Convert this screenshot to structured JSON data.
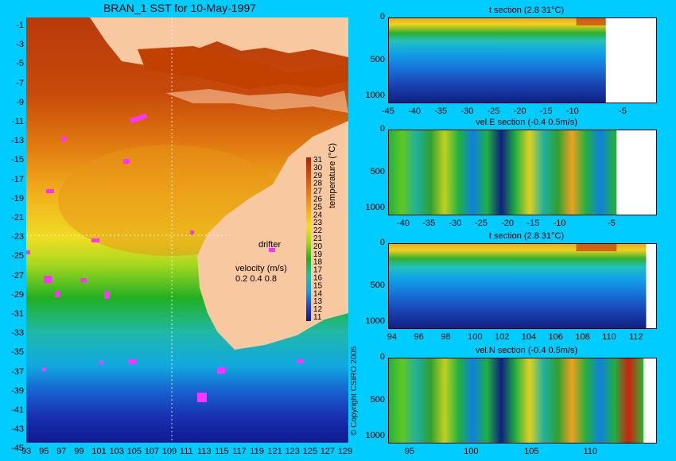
{
  "map": {
    "title": "BRAN_1 SST for 10-May-1997",
    "lat_ticks": [
      "-1",
      "-3",
      "-5",
      "-7",
      "-9",
      "-11",
      "-13",
      "-15",
      "-17",
      "-19",
      "-21",
      "-23",
      "-25",
      "-27",
      "-29",
      "-31",
      "-33",
      "-35",
      "-37",
      "-39",
      "-41",
      "-43",
      "-45"
    ],
    "lon_ticks": [
      "93",
      "95",
      "97",
      "99",
      "101",
      "103",
      "105",
      "107",
      "109",
      "111",
      "113",
      "115",
      "117",
      "119",
      "121",
      "123",
      "125",
      "127",
      "129"
    ],
    "colorbar_ticks": [
      "31",
      "30",
      "29",
      "28",
      "27",
      "26",
      "25",
      "24",
      "23",
      "22",
      "21",
      "20",
      "19",
      "18",
      "17",
      "16",
      "15",
      "14",
      "13",
      "12",
      "11"
    ],
    "colorbar_label": "temperature (°C)",
    "drifter_label": "drifter",
    "velocity_label": "velocity (m/s)",
    "velocity_scale": "0.2 0.4 0.8",
    "copyright": "© Copyright CSIRO 2005",
    "colors": {
      "land": "#f8c8a0",
      "warm": "#b83a0a",
      "mid": "#f2c21e",
      "cool": "#22b022",
      "cold": "#1830b0",
      "drifter": "#ff33ff"
    }
  },
  "panels": [
    {
      "title": "t section (2.8      31°C)",
      "y_ticks": [
        "0",
        "500",
        "1000"
      ],
      "x_ticks": [
        "-45",
        "-40",
        "-35",
        "-30",
        "-25",
        "-20",
        "-15",
        "-10",
        "-5"
      ]
    },
    {
      "title": "vel.E section (-0.4      0.5m/s)",
      "y_ticks": [
        "0",
        "500",
        "1000"
      ],
      "x_ticks": [
        "-40",
        "-35",
        "-30",
        "-25",
        "-20",
        "-15",
        "-10",
        "-5"
      ]
    },
    {
      "title": "t section (2.8      31°C)",
      "y_ticks": [
        "0",
        "500",
        "1000"
      ],
      "x_ticks": [
        "94",
        "96",
        "98",
        "100",
        "102",
        "104",
        "106",
        "108",
        "110",
        "112"
      ]
    },
    {
      "title": "vel.N section (-0.4      0.5m/s)",
      "y_ticks": [
        "0",
        "500",
        "1000"
      ],
      "x_ticks": [
        "95",
        "100",
        "105",
        "110"
      ]
    }
  ]
}
